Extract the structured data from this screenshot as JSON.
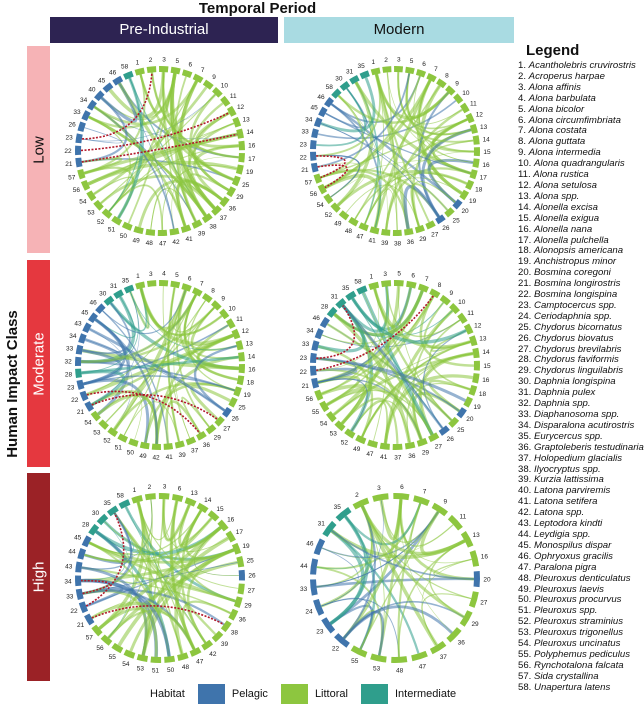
{
  "header": {
    "title": "Temporal Period",
    "columns": [
      "Pre-Industrial",
      "Modern"
    ],
    "row_axis_title": "Human Impact Class",
    "rows": [
      "Low",
      "Moderate",
      "High"
    ]
  },
  "legend": {
    "title": "Legend",
    "species": [
      "Acantholebris cruvirostris",
      "Acroperus harpae",
      "Alona affinis",
      "Alona barbulata",
      "Alona bicolor",
      "Alona circumfimbriata",
      "Alona costata",
      "Alona guttata",
      "Alona intermedia",
      "Alona quadrangularis",
      "Alona rustica",
      "Alona setulosa",
      "Alona spp.",
      "Alonella excisa",
      "Alonella exigua",
      "Alonella nana",
      "Alonella pulchella",
      "Alonopsis americana",
      "Anchistropus minor",
      "Bosmina coregoni",
      "Bosmina longirostris",
      "Bosmina longispina",
      "Camptocercus spp.",
      "Ceriodaphnia spp.",
      "Chydorus bicornatus",
      "Chydorus biovatus",
      "Chydorus brevilabris",
      "Chydorus faviformis",
      "Chydorus linguilabris",
      "Daphnia longispina",
      "Daphnia pulex",
      "Daphnia spp.",
      "Diaphanosoma spp.",
      "Disparalona acutirostris",
      "Eurycercus spp.",
      "Graptoleberis testudinaria",
      "Holopedium glacialis",
      "Ilyocryptus spp.",
      "Kurzia lattissima",
      "Latona parviremis",
      "Latona setifera",
      "Latona spp.",
      "Leptodora kindti",
      "Leydigia spp.",
      "Monospilus dispar",
      "Ophryoxus gracilis",
      "Paralona pigra",
      "Pleuroxus denticulatus",
      "Pleuroxus laevis",
      "Pleuroxus procurvus",
      "Pleuroxus spp.",
      "Pleuroxus straminius",
      "Pleuroxus trigonellus",
      "Pleuroxus uncinatus",
      "Polyphemus pediculus",
      "Rynchotalona falcata",
      "Sida crystallina",
      "Unapertura latens"
    ]
  },
  "habitat_legend": {
    "title": "Habitat",
    "items": [
      {
        "label": "Pelagic",
        "color": "#3f74ac"
      },
      {
        "label": "Littoral",
        "color": "#8dc63f"
      },
      {
        "label": "Intermediate",
        "color": "#2f9e8c"
      }
    ]
  },
  "chart_data": {
    "type": "chord",
    "title": "Temporal Period",
    "xlabel": "Temporal Period",
    "ylabel": "Human Impact Class",
    "colors": {
      "Pelagic": "#3f74ac",
      "Littoral": "#8dc63f",
      "Intermediate": "#2f9e8c",
      "highlight": "#b2182b"
    },
    "panels": [
      {
        "period": "Pre-Industrial",
        "impact": "Low",
        "species_ids": [
          1,
          2,
          3,
          5,
          6,
          7,
          9,
          10,
          11,
          12,
          13,
          14,
          16,
          17,
          19,
          25,
          29,
          36,
          37,
          38,
          39,
          41,
          42,
          47,
          48,
          49,
          50,
          51,
          52,
          53,
          54,
          56,
          57,
          21,
          22,
          23,
          26,
          33,
          34,
          40,
          45,
          46,
          58
        ],
        "highlight": [
          [
            21,
            14
          ],
          [
            22,
            12
          ],
          [
            23,
            2
          ]
        ]
      },
      {
        "period": "Modern",
        "impact": "Low",
        "species_ids": [
          1,
          2,
          3,
          5,
          6,
          7,
          8,
          9,
          10,
          11,
          12,
          13,
          14,
          15,
          16,
          17,
          18,
          19,
          20,
          25,
          26,
          27,
          29,
          36,
          38,
          39,
          41,
          47,
          48,
          49,
          52,
          54,
          56,
          57,
          21,
          22,
          23,
          33,
          34,
          45,
          46,
          58,
          30,
          31,
          35
        ],
        "highlight": [
          [
            21,
            56
          ],
          [
            22,
            57
          ]
        ]
      },
      {
        "period": "Pre-Industrial",
        "impact": "Moderate",
        "species_ids": [
          1,
          3,
          4,
          5,
          6,
          7,
          8,
          9,
          10,
          11,
          12,
          13,
          14,
          16,
          18,
          19,
          25,
          26,
          27,
          29,
          36,
          37,
          39,
          41,
          42,
          49,
          50,
          51,
          52,
          53,
          54,
          21,
          22,
          23,
          28,
          32,
          33,
          34,
          43,
          45,
          46,
          30,
          31,
          35
        ],
        "highlight": [
          [
            21,
            27
          ],
          [
            22,
            36
          ],
          [
            23,
            38
          ]
        ]
      },
      {
        "period": "Modern",
        "impact": "Moderate",
        "species_ids": [
          1,
          3,
          5,
          6,
          7,
          8,
          9,
          10,
          11,
          12,
          13,
          14,
          15,
          16,
          18,
          19,
          20,
          25,
          26,
          27,
          29,
          36,
          37,
          41,
          47,
          49,
          52,
          53,
          54,
          55,
          56,
          21,
          22,
          23,
          33,
          34,
          46,
          28,
          31,
          35,
          58
        ],
        "highlight": [
          [
            21,
            2
          ],
          [
            22,
            8
          ],
          [
            23,
            31
          ]
        ]
      },
      {
        "period": "Pre-Industrial",
        "impact": "High",
        "species_ids": [
          1,
          2,
          3,
          6,
          13,
          14,
          15,
          16,
          17,
          19,
          25,
          26,
          27,
          29,
          36,
          38,
          39,
          42,
          47,
          48,
          50,
          51,
          53,
          54,
          55,
          56,
          57,
          21,
          22,
          33,
          34,
          43,
          44,
          45,
          28,
          30,
          35,
          58
        ],
        "highlight": [
          [
            21,
            38
          ],
          [
            22,
            35
          ],
          [
            33,
            34
          ]
        ]
      },
      {
        "period": "Modern",
        "impact": "High",
        "species_ids": [
          2,
          3,
          6,
          7,
          9,
          11,
          13,
          16,
          20,
          27,
          29,
          36,
          37,
          47,
          48,
          53,
          55,
          22,
          23,
          24,
          33,
          44,
          46,
          31,
          35
        ],
        "highlight": []
      }
    ]
  }
}
